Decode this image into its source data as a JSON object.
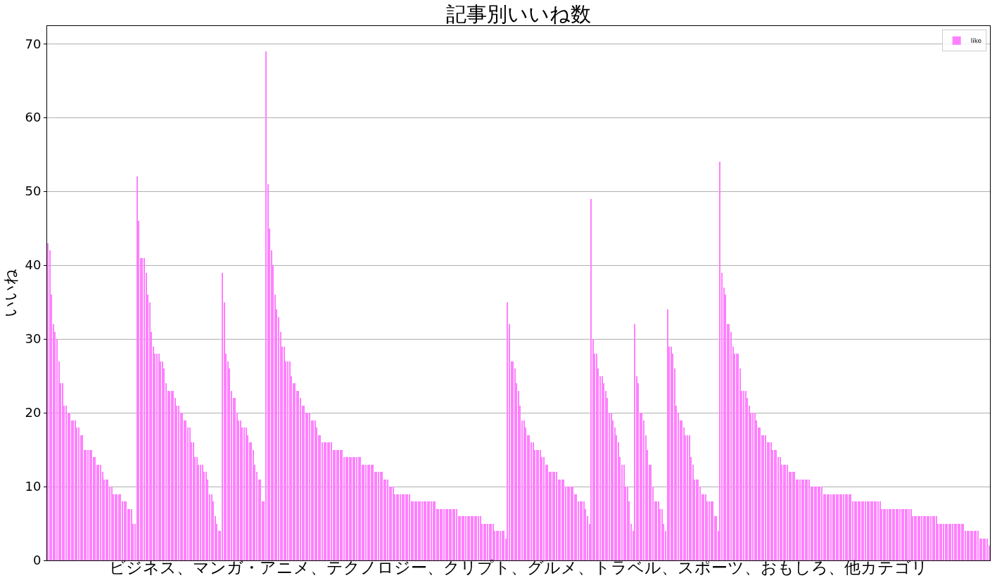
{
  "chart_data": {
    "type": "bar",
    "title": "記事別いいね数",
    "xlabel": "ビジネス、マンガ・アニメ、テクノロジー、クリプト、グルメ、トラベル、スポーツ、おもしろ、他カテゴリ",
    "ylabel": "いいね",
    "categories": [
      null,
      null,
      null,
      null,
      null,
      null,
      null,
      null,
      null,
      null,
      null,
      null,
      null,
      null,
      null,
      null,
      null,
      null,
      null,
      null,
      null,
      null,
      null,
      null,
      null,
      null,
      null,
      null,
      null,
      null,
      null,
      null,
      null,
      null,
      null,
      null,
      null,
      null,
      null,
      null,
      null,
      null,
      null,
      null,
      null,
      null,
      null,
      null,
      null,
      null,
      null,
      null,
      null,
      null,
      null,
      null,
      null,
      null,
      null,
      null,
      null,
      null,
      null,
      null,
      null,
      null,
      null,
      null,
      null,
      null,
      null,
      null,
      null,
      null,
      null,
      null,
      null,
      null,
      null,
      null,
      null,
      null,
      null,
      null,
      null,
      null,
      null,
      null,
      null,
      null,
      null,
      null,
      null,
      null,
      null,
      null,
      null,
      null,
      null,
      null,
      null,
      null,
      null,
      null,
      null,
      null,
      null,
      null,
      null,
      null,
      null,
      null,
      null,
      null,
      null,
      null,
      null,
      null,
      null,
      null,
      null,
      null,
      null,
      null,
      null,
      null,
      null,
      null,
      null,
      null,
      null,
      null,
      null,
      null,
      null,
      null,
      null,
      null,
      null,
      null,
      null,
      null,
      null,
      null,
      null,
      null,
      null,
      null,
      null,
      null,
      null,
      null,
      null,
      null,
      null,
      null,
      null,
      null,
      null,
      null,
      null,
      null,
      null,
      null,
      null,
      null,
      null,
      null,
      null,
      null,
      null,
      null,
      null,
      null,
      null,
      null,
      null,
      null,
      null,
      null,
      null,
      null,
      null,
      null,
      null,
      null,
      null,
      null,
      null,
      null,
      null,
      null,
      null,
      null,
      null,
      null,
      null,
      null,
      null,
      null,
      null,
      null,
      null,
      null,
      null,
      null,
      null,
      null,
      null,
      null,
      null,
      null,
      null,
      null,
      null,
      null,
      null,
      null,
      null,
      null,
      null,
      null,
      null,
      null,
      null,
      null,
      null,
      null,
      null,
      null,
      null,
      null,
      null,
      null,
      null,
      null,
      null,
      null,
      null,
      null,
      null,
      null,
      null,
      null,
      null,
      null,
      null,
      null,
      null,
      null,
      null,
      null,
      null,
      null,
      null,
      null,
      null,
      null,
      null,
      null,
      null,
      null,
      null,
      null,
      null,
      null,
      null,
      null,
      null,
      null,
      null,
      null,
      null,
      null,
      null,
      null,
      null,
      null,
      null,
      null,
      null,
      null,
      null,
      null,
      null,
      null,
      null,
      null,
      null,
      null,
      null,
      null,
      null,
      null,
      null,
      null,
      null,
      null,
      null,
      null,
      null,
      null,
      null,
      null,
      null,
      null,
      null,
      null,
      null,
      null,
      null,
      null,
      null,
      null,
      null,
      null,
      null,
      null,
      null,
      null,
      null,
      null,
      null,
      null,
      null,
      null,
      null,
      null,
      null,
      null,
      null,
      null,
      null,
      null,
      null,
      null,
      null,
      null,
      null,
      null,
      null,
      null,
      null,
      null,
      null,
      null,
      null,
      null,
      null,
      null,
      null,
      null,
      null,
      null,
      null,
      null,
      null,
      null,
      null,
      null,
      null,
      null,
      null,
      null,
      null,
      null,
      null,
      null,
      null,
      null,
      null,
      null,
      null,
      null,
      null,
      null,
      null,
      null,
      null,
      null,
      null,
      null,
      null,
      null,
      null,
      null,
      null,
      null,
      null,
      null,
      null,
      null,
      null,
      null,
      null,
      null,
      null,
      null,
      null,
      null,
      null,
      null,
      null,
      null,
      null,
      null,
      null,
      null,
      null,
      null,
      null,
      null,
      null,
      null,
      null,
      null,
      null,
      null,
      null,
      null,
      null,
      null,
      null,
      null,
      null,
      null,
      null,
      null,
      null,
      null,
      null,
      null,
      null,
      null,
      null,
      null,
      null,
      null,
      null,
      null,
      null,
      null,
      null,
      null,
      null,
      null,
      null,
      null,
      null,
      null,
      null,
      null,
      null,
      null,
      null,
      null,
      null,
      null,
      null,
      null,
      null,
      null,
      null,
      null,
      null,
      null,
      null,
      null,
      null,
      null,
      null,
      null,
      null,
      null,
      null,
      null,
      null,
      null,
      null,
      null,
      null,
      null,
      null,
      null,
      null,
      null,
      null,
      null,
      null,
      null,
      null,
      null,
      null,
      null,
      null,
      null,
      null,
      null,
      null,
      null,
      null,
      null,
      null,
      null,
      null,
      null,
      null,
      null,
      null,
      null,
      null,
      null,
      null,
      null,
      null,
      null,
      null,
      null,
      null
    ],
    "series": [
      {
        "name": "like",
        "color": "#ff80ff",
        "values": [
          43,
          42,
          36,
          32,
          31,
          30,
          27,
          24,
          24,
          21,
          21,
          20,
          20,
          19,
          19,
          19,
          18,
          18,
          17,
          17,
          15,
          15,
          15,
          15,
          15,
          14,
          14,
          13,
          13,
          13,
          12,
          11,
          11,
          11,
          10,
          10,
          9,
          9,
          9,
          9,
          9,
          8,
          8,
          8,
          7,
          7,
          7,
          5,
          5,
          52,
          46,
          41,
          41,
          41,
          39,
          36,
          35,
          31,
          29,
          28,
          28,
          28,
          27,
          27,
          26,
          24,
          23,
          23,
          23,
          23,
          22,
          21,
          21,
          20,
          20,
          19,
          19,
          18,
          18,
          16,
          16,
          14,
          14,
          13,
          13,
          13,
          12,
          12,
          11,
          9,
          9,
          8,
          6,
          5,
          4,
          4,
          39,
          35,
          28,
          27,
          26,
          23,
          22,
          22,
          20,
          19,
          19,
          18,
          18,
          18,
          17,
          16,
          16,
          15,
          13,
          12,
          11,
          11,
          8,
          8,
          69,
          51,
          45,
          42,
          40,
          36,
          34,
          33,
          31,
          29,
          29,
          27,
          27,
          27,
          25,
          24,
          24,
          23,
          23,
          22,
          21,
          21,
          20,
          20,
          20,
          19,
          19,
          19,
          18,
          17,
          17,
          16,
          16,
          16,
          16,
          16,
          16,
          15,
          15,
          15,
          15,
          15,
          15,
          14,
          14,
          14,
          14,
          14,
          14,
          14,
          14,
          14,
          14,
          13,
          13,
          13,
          13,
          13,
          13,
          13,
          12,
          12,
          12,
          12,
          12,
          11,
          11,
          11,
          10,
          10,
          10,
          9,
          9,
          9,
          9,
          9,
          9,
          9,
          9,
          9,
          8,
          8,
          8,
          8,
          8,
          8,
          8,
          8,
          8,
          8,
          8,
          8,
          8,
          8,
          7,
          7,
          7,
          7,
          7,
          7,
          7,
          7,
          7,
          7,
          7,
          7,
          6,
          6,
          6,
          6,
          6,
          6,
          6,
          6,
          6,
          6,
          6,
          6,
          6,
          5,
          5,
          5,
          5,
          5,
          5,
          5,
          4,
          4,
          4,
          4,
          4,
          4,
          3,
          35,
          32,
          27,
          27,
          26,
          24,
          23,
          21,
          19,
          19,
          18,
          17,
          17,
          16,
          16,
          15,
          15,
          15,
          15,
          14,
          14,
          13,
          13,
          12,
          12,
          12,
          12,
          12,
          11,
          11,
          11,
          11,
          10,
          10,
          10,
          10,
          10,
          9,
          9,
          8,
          8,
          8,
          8,
          7,
          6,
          5,
          49,
          30,
          28,
          28,
          26,
          25,
          25,
          24,
          23,
          22,
          20,
          20,
          19,
          18,
          17,
          16,
          14,
          13,
          13,
          10,
          10,
          8,
          5,
          4,
          32,
          25,
          24,
          20,
          20,
          19,
          17,
          15,
          13,
          13,
          10,
          8,
          8,
          8,
          7,
          7,
          5,
          4,
          34,
          29,
          29,
          28,
          26,
          21,
          20,
          19,
          19,
          18,
          17,
          17,
          17,
          14,
          13,
          11,
          11,
          11,
          10,
          9,
          9,
          9,
          8,
          8,
          8,
          8,
          6,
          6,
          4,
          54,
          39,
          37,
          36,
          32,
          32,
          31,
          29,
          28,
          28,
          28,
          26,
          23,
          23,
          23,
          22,
          21,
          20,
          20,
          20,
          19,
          18,
          18,
          17,
          17,
          17,
          16,
          16,
          16,
          15,
          15,
          15,
          14,
          14,
          13,
          13,
          13,
          13,
          12,
          12,
          12,
          12,
          11,
          11,
          11,
          11,
          11,
          11,
          11,
          11,
          10,
          10,
          10,
          10,
          10,
          10,
          10,
          9,
          9,
          9,
          9,
          9,
          9,
          9,
          9,
          9,
          9,
          9,
          9,
          9,
          9,
          9,
          9,
          8,
          8,
          8,
          8,
          8,
          8,
          8,
          8,
          8,
          8,
          8,
          8,
          8,
          8,
          8,
          8,
          7,
          7,
          7,
          7,
          7,
          7,
          7,
          7,
          7,
          7,
          7,
          7,
          7,
          7,
          7,
          7,
          7,
          6,
          6,
          6,
          6,
          6,
          6,
          6,
          6,
          6,
          6,
          6,
          6,
          6,
          6,
          5,
          5,
          5,
          5,
          5,
          5,
          5,
          5,
          5,
          5,
          5,
          5,
          5,
          5,
          5,
          4,
          4,
          4,
          4,
          4,
          4,
          4,
          4,
          3,
          3,
          3,
          3,
          3,
          2
        ]
      }
    ],
    "ylim": [
      0,
      72.4
    ],
    "yticks": [
      0,
      10,
      20,
      30,
      40,
      50,
      60,
      70
    ],
    "grid": "y",
    "legend": "top right",
    "tick_labels": "y"
  }
}
